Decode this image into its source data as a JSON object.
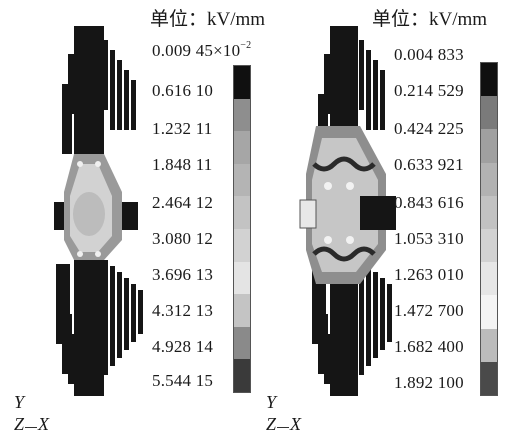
{
  "left": {
    "unit_label": "单位：kV/mm",
    "scale_first_value": "0.009 45×10",
    "scale_first_exponent": "−2",
    "scale_values": [
      "0.616 10",
      "1.232 11",
      "1.848 11",
      "2.464 12",
      "3.080 12",
      "3.696 13",
      "4.312 13",
      "4.928 14",
      "5.544 15"
    ],
    "colorbar": [
      "#101010",
      "#8e8e8e",
      "#a6a6a6",
      "#b4b4b4",
      "#c3c3c3",
      "#d2d2d2",
      "#e4e4e4",
      "#c4c4c4",
      "#8a8a8a",
      "#3a3a3a"
    ],
    "axis_y": "Y",
    "axis_zx": [
      "Z",
      "X"
    ]
  },
  "right": {
    "unit_label": "单位：kV/mm",
    "scale_values": [
      "0.004 833",
      "0.214 529",
      "0.424 225",
      "0.633 921",
      "0.843 616",
      "1.053 310",
      "1.263 010",
      "1.472 700",
      "1.682 400",
      "1.892 100"
    ],
    "colorbar": [
      "#0f0f0f",
      "#7a7a7a",
      "#a0a0a0",
      "#b2b2b2",
      "#c2c2c2",
      "#d2d2d2",
      "#e6e6e6",
      "#f4f4f4",
      "#bcbcbc",
      "#4a4a4a"
    ],
    "axis_y": "Y",
    "axis_zx": [
      "Z",
      "X"
    ]
  }
}
